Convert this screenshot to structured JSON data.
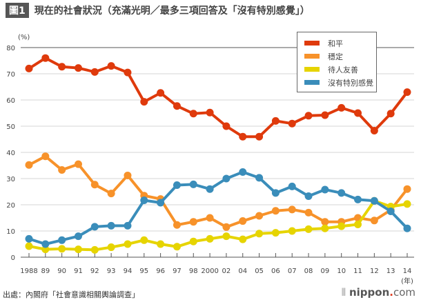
{
  "header": {
    "badge": "圖1",
    "title": "現在的社會狀況（充滿光明／最多三項回答及「沒有特別感覺」）"
  },
  "footer": {
    "source": "出處：內閣府「社會意識相關輿論調查」",
    "logo": "nippon.com"
  },
  "chart_data": {
    "type": "line",
    "title": "現在的社會狀況（充滿光明／最多三項回答及「沒有特別感覺」）",
    "ylabel": "(%)",
    "xlabel": "(年)",
    "ylim": [
      0,
      80
    ],
    "yticks": [
      0,
      10,
      20,
      30,
      40,
      50,
      60,
      70,
      80
    ],
    "grid": true,
    "legend_position": "top-right",
    "categories": [
      "1988",
      "89",
      "90",
      "91",
      "92",
      "93",
      "94",
      "95",
      "96",
      "97",
      "98",
      "2000",
      "02",
      "04",
      "05",
      "06",
      "07",
      "08",
      "09",
      "10",
      "11",
      "12",
      "13",
      "14"
    ],
    "series": [
      {
        "name": "和平",
        "color": "#df3a0c",
        "values": [
          72,
          76,
          72.7,
          72.2,
          70.7,
          73,
          70.5,
          59.3,
          62.7,
          57.7,
          54.8,
          55.2,
          50,
          46,
          46,
          52,
          51,
          54,
          54.2,
          57,
          55,
          48.3,
          54.8,
          63
        ]
      },
      {
        "name": "穩定",
        "color": "#f7922a",
        "values": [
          35.2,
          38.5,
          33.3,
          35.5,
          27.7,
          24.3,
          31.2,
          23.5,
          22.2,
          12.3,
          13.5,
          15,
          11.5,
          13.8,
          15.8,
          17.7,
          18.2,
          17,
          13.5,
          13.5,
          15,
          14,
          18,
          26
        ]
      },
      {
        "name": "待人友善",
        "color": "#e6d400",
        "values": [
          4.2,
          3,
          3.2,
          3,
          2.8,
          3.8,
          5,
          6.5,
          5,
          4,
          6,
          7,
          8,
          6.8,
          9,
          9.3,
          10,
          10.7,
          11,
          11.8,
          12.5,
          21.5,
          19.3,
          20.3
        ]
      },
      {
        "name": "沒有特別感覺",
        "color": "#3a8dba",
        "values": [
          7,
          5,
          6.5,
          8,
          11.6,
          12,
          12,
          21.7,
          20.8,
          27.5,
          27.8,
          26,
          30,
          32.5,
          30.3,
          24.5,
          27,
          23.3,
          25.8,
          24.5,
          22,
          21.5,
          17.5,
          11
        ]
      }
    ]
  }
}
